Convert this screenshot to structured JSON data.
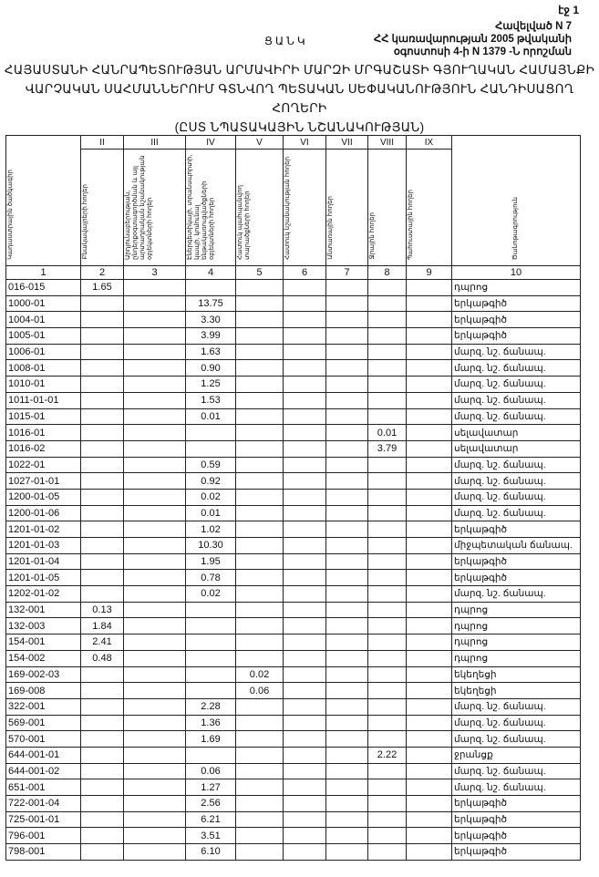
{
  "page_label": "էջ 1",
  "annex": {
    "line1": "Հավելված N 7",
    "line2": "ՀՀ կառավարության 2005 թվականի",
    "line3": "օգոստոսի 4-ի N 1379 -Ն որոշման"
  },
  "list_title": "ՑԱՆԿ",
  "main_title": {
    "line1": "ՀԱՅԱՍՏԱՆԻ ՀԱՆՐԱՊԵՏՈՒԹՅԱՆ ԱՐՄԱՎԻՐԻ ՄԱՐԶԻ ՄՐԳԱՇԱՏԻ ԳՅՈՒՂԱԿԱՆ ՀԱՄԱՅՆՔԻ",
    "line2": "ՎԱՐՉԱԿԱՆ ՍԱՀՄԱՆՆԵՐՈՒՄ ԳՏՆՎՈՂ ՊԵՏԱԿԱՆ ՍԵՓԱԿԱՆՈՒԹՅՈՒՆ ՀԱՆԴԻՍԱՑՈՂ ՀՈՂԵՐԻ",
    "line3": "(ԸՍՏ ՆՊԱՏԱԿԱՅԻՆ ՆՇԱՆԱԿՈՒԹՅԱՆ)"
  },
  "table": {
    "roman": [
      "",
      "II",
      "III",
      "IV",
      "V",
      "VI",
      "VII",
      "VIII",
      "IX",
      ""
    ],
    "headers": [
      "Կադաստրային ծածկագիր",
      "Բնակավայրերի հողեր",
      "Արդյունաբերության, ընդերքօգտագործման և այլ արտադրական նշանակության օբյեկտների հողեր",
      "Էներգետիկայի, տրանսպորտի, կապի, կոմունալ ենթակառուցվածքների օբյեկտների հողեր",
      "Հատուկ պահպանվող տարածքների հողեր",
      "Հատուկ նշանակության հողեր",
      "Անտառային հողեր",
      "Ջրային հողեր",
      "Պահուստային հողեր",
      "Ծանոթագրություն"
    ],
    "numbers": [
      "1",
      "2",
      "3",
      "4",
      "5",
      "6",
      "7",
      "8",
      "9",
      "10"
    ],
    "rows": [
      {
        "code": "016-015",
        "v": [
          "1.65",
          "",
          "",
          "",
          "",
          "",
          "",
          ""
        ],
        "note": "դպրոց"
      },
      {
        "code": "1000-01",
        "v": [
          "",
          "",
          "13.75",
          "",
          "",
          "",
          "",
          ""
        ],
        "note": "երկաթգիծ"
      },
      {
        "code": "1004-01",
        "v": [
          "",
          "",
          "3.30",
          "",
          "",
          "",
          "",
          ""
        ],
        "note": "երկաթգիծ"
      },
      {
        "code": "1005-01",
        "v": [
          "",
          "",
          "3.99",
          "",
          "",
          "",
          "",
          ""
        ],
        "note": "երկաթգիծ"
      },
      {
        "code": "1006-01",
        "v": [
          "",
          "",
          "1.63",
          "",
          "",
          "",
          "",
          ""
        ],
        "note": "մարզ. նշ. ճանապ."
      },
      {
        "code": "1008-01",
        "v": [
          "",
          "",
          "0.90",
          "",
          "",
          "",
          "",
          ""
        ],
        "note": "մարզ. նշ. ճանապ."
      },
      {
        "code": "1010-01",
        "v": [
          "",
          "",
          "1.25",
          "",
          "",
          "",
          "",
          ""
        ],
        "note": "մարզ. նշ. ճանապ."
      },
      {
        "code": "1011-01-01",
        "v": [
          "",
          "",
          "1.53",
          "",
          "",
          "",
          "",
          ""
        ],
        "note": "մարզ. նշ. ճանապ."
      },
      {
        "code": "1015-01",
        "v": [
          "",
          "",
          "0.01",
          "",
          "",
          "",
          "",
          ""
        ],
        "note": "մարզ. նշ. ճանապ."
      },
      {
        "code": "1016-01",
        "v": [
          "",
          "",
          "",
          "",
          "",
          "",
          "0.01",
          ""
        ],
        "note": "սելավատար"
      },
      {
        "code": "1016-02",
        "v": [
          "",
          "",
          "",
          "",
          "",
          "",
          "3.79",
          ""
        ],
        "note": "սելավատար"
      },
      {
        "code": "1022-01",
        "v": [
          "",
          "",
          "0.59",
          "",
          "",
          "",
          "",
          ""
        ],
        "note": "մարզ. նշ. ճանապ."
      },
      {
        "code": "1027-01-01",
        "v": [
          "",
          "",
          "0.92",
          "",
          "",
          "",
          "",
          ""
        ],
        "note": "մարզ. նշ. ճանապ."
      },
      {
        "code": "1200-01-05",
        "v": [
          "",
          "",
          "0.02",
          "",
          "",
          "",
          "",
          ""
        ],
        "note": "մարզ. նշ. ճանապ."
      },
      {
        "code": "1200-01-06",
        "v": [
          "",
          "",
          "0.01",
          "",
          "",
          "",
          "",
          ""
        ],
        "note": "մարզ. նշ. ճանապ."
      },
      {
        "code": "1201-01-02",
        "v": [
          "",
          "",
          "1.02",
          "",
          "",
          "",
          "",
          ""
        ],
        "note": "երկաթգիծ"
      },
      {
        "code": "1201-01-03",
        "v": [
          "",
          "",
          "10.30",
          "",
          "",
          "",
          "",
          ""
        ],
        "note": "միջպետական ճանապ."
      },
      {
        "code": "1201-01-04",
        "v": [
          "",
          "",
          "1.95",
          "",
          "",
          "",
          "",
          ""
        ],
        "note": "երկաթգիծ"
      },
      {
        "code": "1201-01-05",
        "v": [
          "",
          "",
          "0.78",
          "",
          "",
          "",
          "",
          ""
        ],
        "note": "երկաթգիծ"
      },
      {
        "code": "1202-01-02",
        "v": [
          "",
          "",
          "0.02",
          "",
          "",
          "",
          "",
          ""
        ],
        "note": "մարզ. նշ. ճանապ."
      },
      {
        "code": "132-001",
        "v": [
          "0.13",
          "",
          "",
          "",
          "",
          "",
          "",
          ""
        ],
        "note": "դպրոց"
      },
      {
        "code": "132-003",
        "v": [
          "1.84",
          "",
          "",
          "",
          "",
          "",
          "",
          ""
        ],
        "note": "դպրոց"
      },
      {
        "code": "154-001",
        "v": [
          "2.41",
          "",
          "",
          "",
          "",
          "",
          "",
          ""
        ],
        "note": "դպրոց"
      },
      {
        "code": "154-002",
        "v": [
          "0.48",
          "",
          "",
          "",
          "",
          "",
          "",
          ""
        ],
        "note": "դպրոց"
      },
      {
        "code": "169-002-03",
        "v": [
          "",
          "",
          "",
          "0.02",
          "",
          "",
          "",
          ""
        ],
        "note": "եկեղեցի"
      },
      {
        "code": "169-008",
        "v": [
          "",
          "",
          "",
          "0.06",
          "",
          "",
          "",
          ""
        ],
        "note": "եկեղեցի"
      },
      {
        "code": "322-001",
        "v": [
          "",
          "",
          "2.28",
          "",
          "",
          "",
          "",
          ""
        ],
        "note": "մարզ. նշ. ճանապ."
      },
      {
        "code": "569-001",
        "v": [
          "",
          "",
          "1.36",
          "",
          "",
          "",
          "",
          ""
        ],
        "note": "մարզ. նշ. ճանապ."
      },
      {
        "code": "570-001",
        "v": [
          "",
          "",
          "1.69",
          "",
          "",
          "",
          "",
          ""
        ],
        "note": "մարզ. նշ. ճանապ."
      },
      {
        "code": "644-001-01",
        "v": [
          "",
          "",
          "",
          "",
          "",
          "",
          "2.22",
          ""
        ],
        "note": "ջրանցք"
      },
      {
        "code": "644-001-02",
        "v": [
          "",
          "",
          "0.06",
          "",
          "",
          "",
          "",
          ""
        ],
        "note": "մարզ. նշ. ճանապ."
      },
      {
        "code": "651-001",
        "v": [
          "",
          "",
          "1.27",
          "",
          "",
          "",
          "",
          ""
        ],
        "note": "մարզ. նշ. ճանապ."
      },
      {
        "code": "722-001-04",
        "v": [
          "",
          "",
          "2.56",
          "",
          "",
          "",
          "",
          ""
        ],
        "note": "երկաթգիծ"
      },
      {
        "code": "725-001-01",
        "v": [
          "",
          "",
          "6.21",
          "",
          "",
          "",
          "",
          ""
        ],
        "note": "երկաթգիծ"
      },
      {
        "code": "796-001",
        "v": [
          "",
          "",
          "3.51",
          "",
          "",
          "",
          "",
          ""
        ],
        "note": "երկաթգիծ"
      },
      {
        "code": "798-001",
        "v": [
          "",
          "",
          "6.10",
          "",
          "",
          "",
          "",
          ""
        ],
        "note": "երկաթգիծ"
      }
    ]
  }
}
